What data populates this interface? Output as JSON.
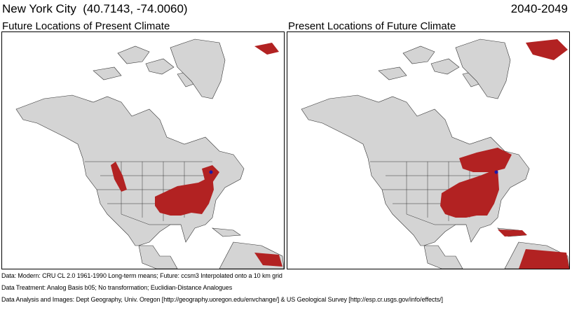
{
  "header": {
    "title": "New York City  (40.7143, -74.0060)",
    "period": "2040-2049"
  },
  "panels": [
    {
      "title": "Future Locations of Present Climate",
      "highlight_color": "#b22222",
      "marker_color": "#1a1aa8"
    },
    {
      "title": "Present Locations of Future Climate",
      "highlight_color": "#b22222",
      "marker_color": "#1a1aa8"
    }
  ],
  "colors": {
    "land": "#d4d4d4",
    "ocean": "#ffffff",
    "boundary": "#111111",
    "highlight": "#b22222",
    "marker": "#1a1aa8"
  },
  "footer": {
    "line1": "Data:  Modern: CRU CL 2.0 1961-1990 Long-term means; Future: ccsm3 Interpolated onto a 10 km grid",
    "line2": "Data Treatment:  Analog Basis b05; No transformation; Euclidian-Distance Analogues",
    "line3": "Data Analysis and Images:  Dept Geography, Univ. Oregon [http://geography.uoregon.edu/envchange/] & US Geological Survey [http://esp.cr.usgs.gov/info/effects/]"
  }
}
